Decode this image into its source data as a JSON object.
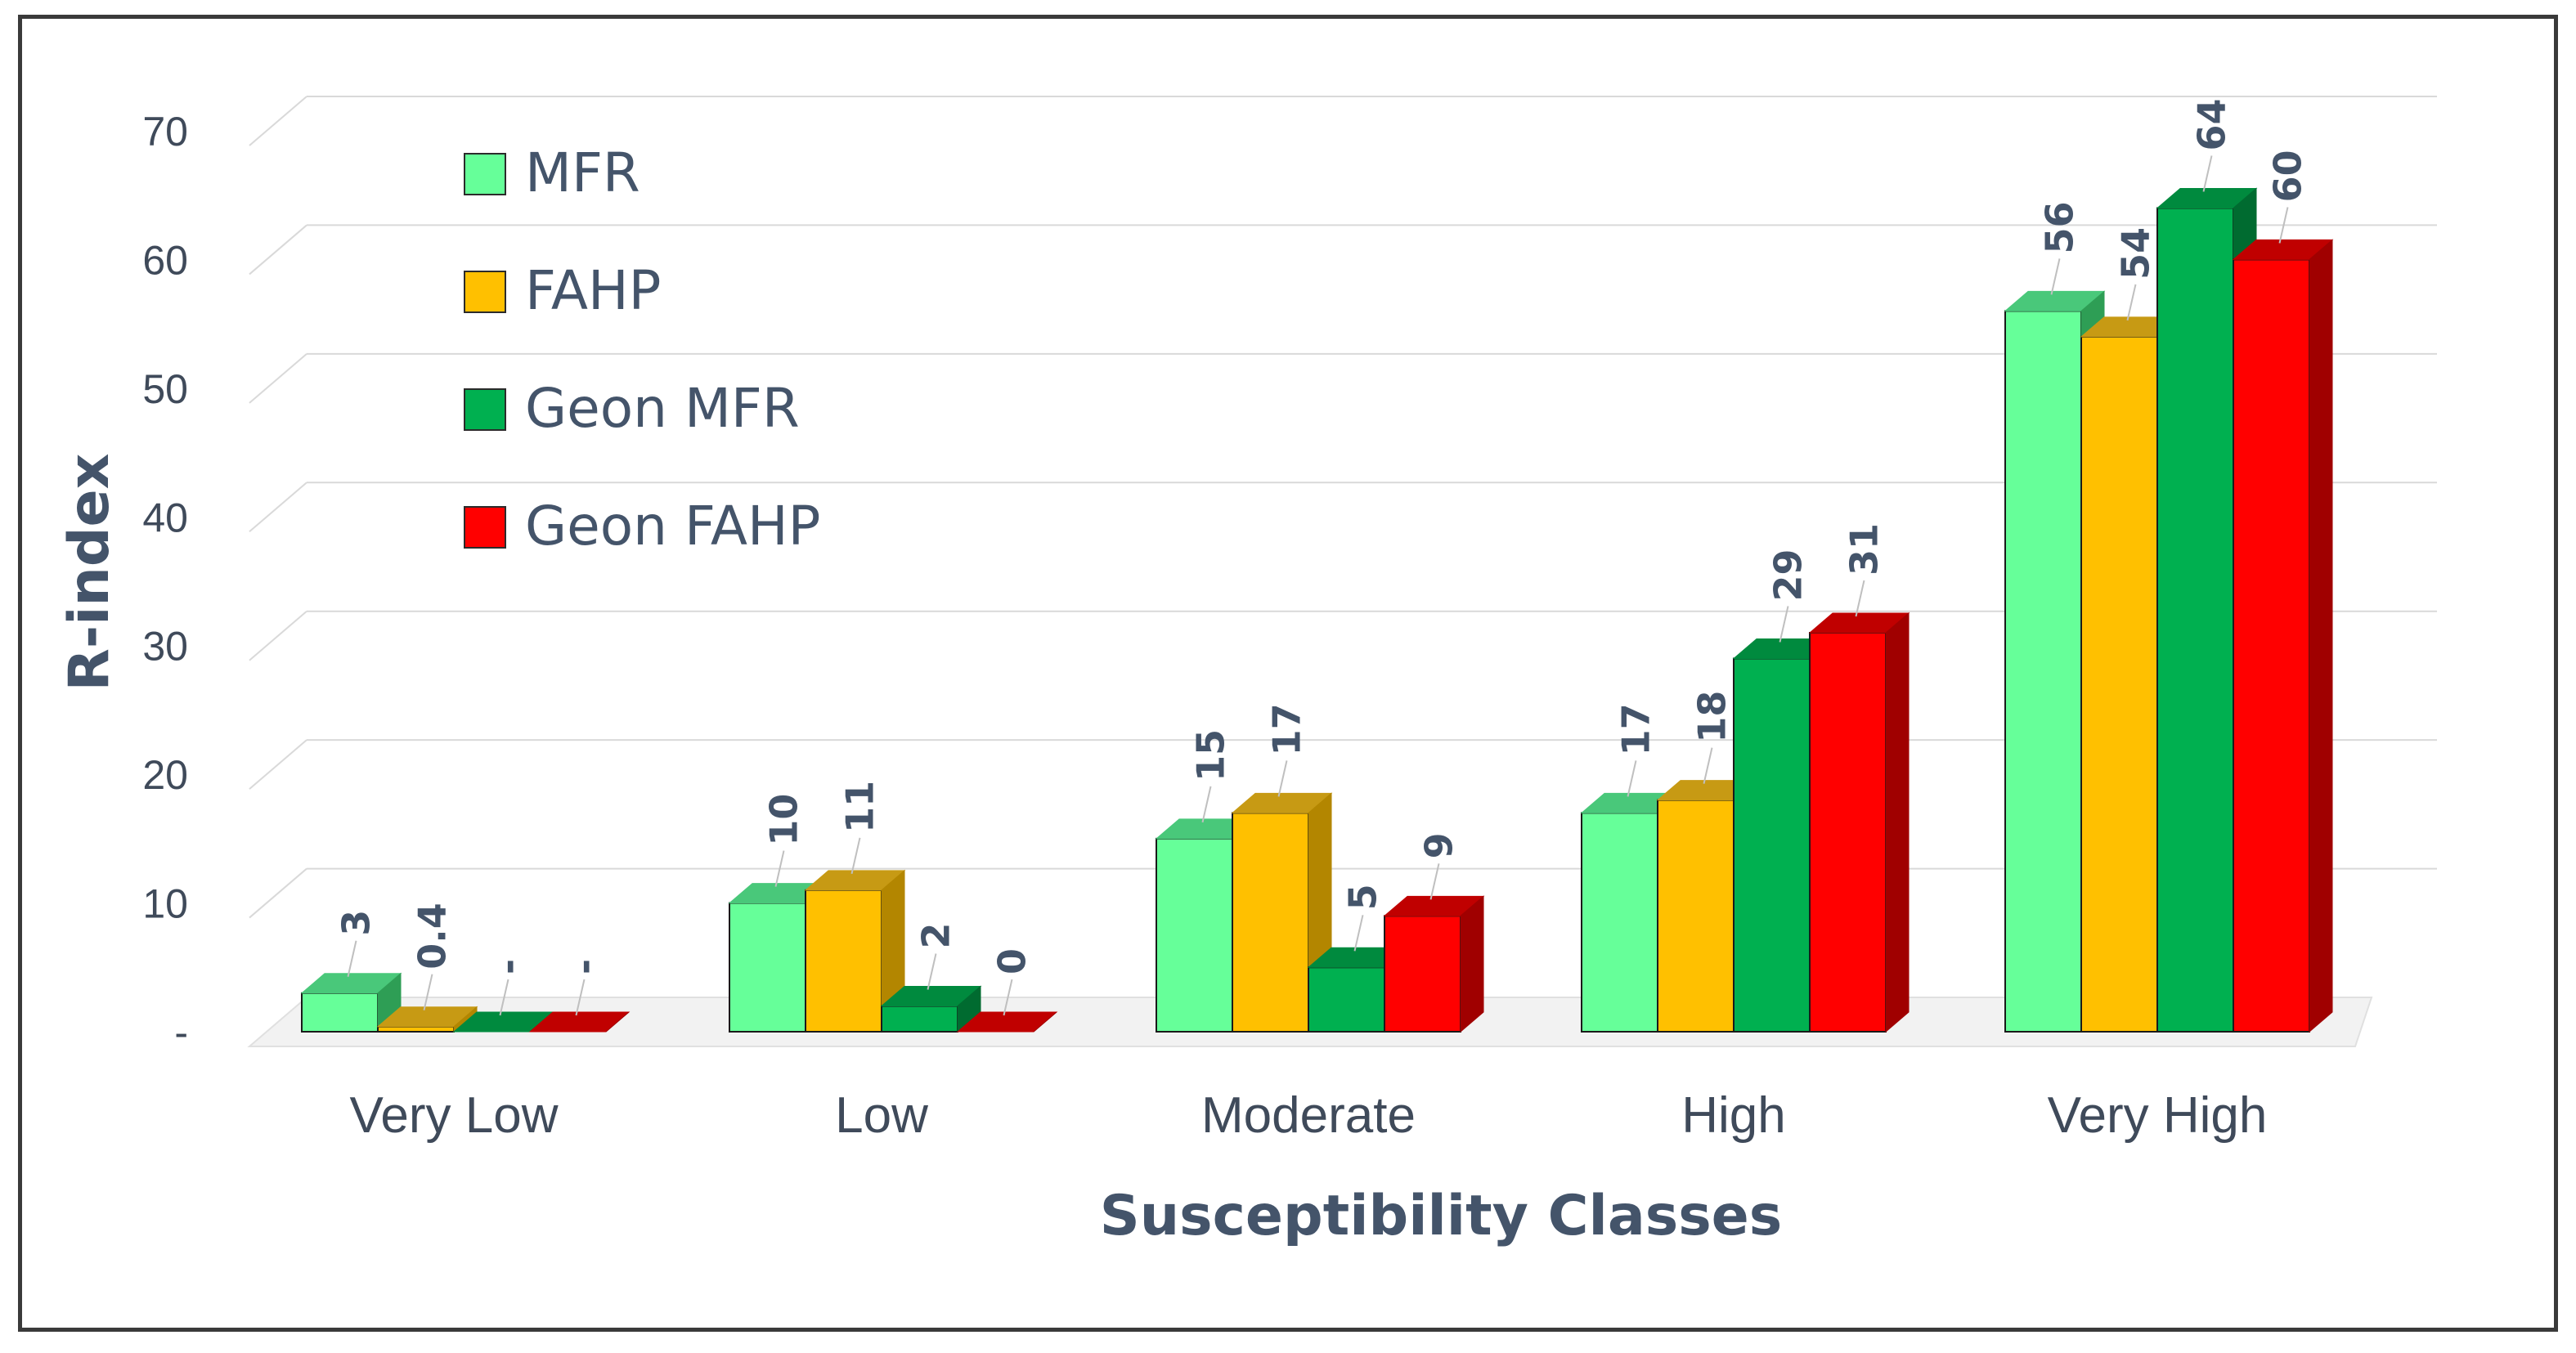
{
  "chart_data": {
    "type": "bar",
    "title": "",
    "xlabel": "Susceptibility Classes",
    "ylabel": "R-index",
    "ylim": [
      0,
      70
    ],
    "y_ticks": [
      {
        "value": 0,
        "label": "-"
      },
      {
        "value": 10,
        "label": "10"
      },
      {
        "value": 20,
        "label": "20"
      },
      {
        "value": 30,
        "label": "30"
      },
      {
        "value": 40,
        "label": "40"
      },
      {
        "value": 50,
        "label": "50"
      },
      {
        "value": 60,
        "label": "60"
      },
      {
        "value": 70,
        "label": "70"
      }
    ],
    "grid": true,
    "legend_position": "top-left",
    "categories": [
      "Very Low",
      "Low",
      "Moderate",
      "High",
      "Very High"
    ],
    "series": [
      {
        "name": "MFR",
        "color": "#66ff99",
        "side": "#2e9e55",
        "top": "#49c87a",
        "values": [
          3,
          10,
          15,
          17,
          56
        ],
        "labels": [
          "3",
          "10",
          "15",
          "17",
          "56"
        ]
      },
      {
        "name": "FAHP",
        "color": "#ffc000",
        "side": "#b38600",
        "top": "#c79a14",
        "values": [
          0.4,
          11,
          17,
          18,
          54
        ],
        "labels": [
          "0.4",
          "11",
          "17",
          "18",
          "54"
        ]
      },
      {
        "name": "Geon MFR",
        "color": "#00b050",
        "side": "#006b30",
        "top": "#008a3e",
        "values": [
          0,
          2,
          5,
          29,
          64
        ],
        "labels": [
          "-",
          "2",
          "5",
          "29",
          "64"
        ]
      },
      {
        "name": "Geon FAHP",
        "color": "#ff0000",
        "side": "#a00000",
        "top": "#c00000",
        "values": [
          0,
          0,
          9,
          31,
          60
        ],
        "labels": [
          "-",
          "0",
          "9",
          "31",
          "60"
        ]
      }
    ]
  }
}
